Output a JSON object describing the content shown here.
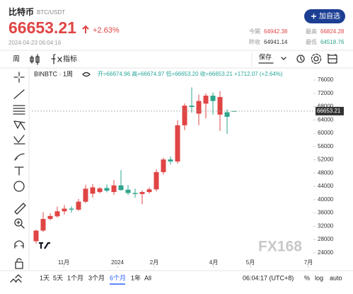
{
  "header": {
    "name": "比特币",
    "pair": "BTC/USDT",
    "price": "66653.21",
    "change": "+2.63%",
    "datetime": "2024-04-23 06:04:16",
    "button": "加自选",
    "stats": [
      {
        "label": "今開",
        "value": "64942.38",
        "tone": "up"
      },
      {
        "label": "最高",
        "value": "66824.28",
        "tone": "up"
      },
      {
        "label": "昨收",
        "value": "64941.14",
        "tone": "flat"
      },
      {
        "label": "最低",
        "value": "64518.76",
        "tone": "down"
      }
    ]
  },
  "toolbar": {
    "interval": "周",
    "indicators": "指标",
    "save": "保存"
  },
  "chart_data": {
    "type": "candlestick",
    "symbol": "BINBTC · 1周",
    "legend": "开=66674.96 高=66674.97 低=66653.20 收=66653.21 +1712.07 (+2.64%)",
    "up_color": "#e04545",
    "down_color": "#2ea48c",
    "x": [
      0,
      1,
      2,
      3,
      4,
      5,
      6,
      7,
      8,
      9,
      10,
      11,
      12,
      13,
      14,
      15,
      16,
      17,
      18,
      19,
      20,
      21,
      22,
      23,
      24,
      25,
      26,
      27,
      28
    ],
    "open": [
      27500,
      30700,
      34200,
      35000,
      36500,
      37300,
      37000,
      39400,
      41800,
      42300,
      43500,
      42300,
      44300,
      43000,
      42000,
      41700,
      42300,
      43100,
      48300,
      52100,
      51500,
      62400,
      68300,
      65900,
      68900,
      71300,
      65600,
      66300,
      66674.96
    ],
    "high": [
      30900,
      36200,
      35900,
      37900,
      38400,
      38000,
      40200,
      44500,
      44700,
      43800,
      44600,
      45900,
      48900,
      44400,
      43300,
      42800,
      43700,
      49100,
      52600,
      53000,
      63900,
      69000,
      73800,
      71600,
      72000,
      72300,
      72700,
      67200,
      66674.97
    ],
    "low": [
      26800,
      30300,
      33800,
      34600,
      35600,
      36100,
      36600,
      39000,
      40600,
      41900,
      42200,
      41500,
      42700,
      41400,
      40600,
      38600,
      41800,
      42500,
      47600,
      50600,
      50900,
      60900,
      66200,
      62400,
      64500,
      65600,
      60700,
      59800,
      66653.2
    ],
    "close": [
      30700,
      34200,
      35100,
      36500,
      37300,
      37000,
      39400,
      43300,
      43700,
      43400,
      42700,
      44300,
      42900,
      42000,
      41700,
      42300,
      43100,
      48300,
      52100,
      51500,
      62400,
      68300,
      67900,
      69700,
      71300,
      69700,
      70900,
      64941.14,
      66653.21
    ],
    "current_price": 66653.21,
    "xlim": [
      -0.6,
      39.4
    ],
    "xticks": [
      {
        "value": 3.9,
        "label": "11月"
      },
      {
        "value": 11.5,
        "label": "2024"
      },
      {
        "value": 16.7,
        "label": "2月"
      },
      {
        "value": 25.1,
        "label": "4月"
      },
      {
        "value": 30.3,
        "label": "5月"
      },
      {
        "value": 38.5,
        "label": "7月"
      }
    ],
    "ylim": [
      19500,
      79200
    ],
    "yticks": [
      24000,
      28000,
      32000,
      36000,
      40000,
      44000,
      48000,
      52000,
      56000,
      60000,
      64000,
      68000,
      72000,
      76000
    ],
    "watermark": "FX168"
  },
  "footer": {
    "ranges": [
      "1天",
      "5天",
      "1个月",
      "3个月",
      "6个月",
      "1年",
      "All"
    ],
    "active_range_index": 4,
    "time": "06:04:17 (UTC+8)",
    "scale_options": [
      "%",
      "log",
      "auto"
    ]
  }
}
